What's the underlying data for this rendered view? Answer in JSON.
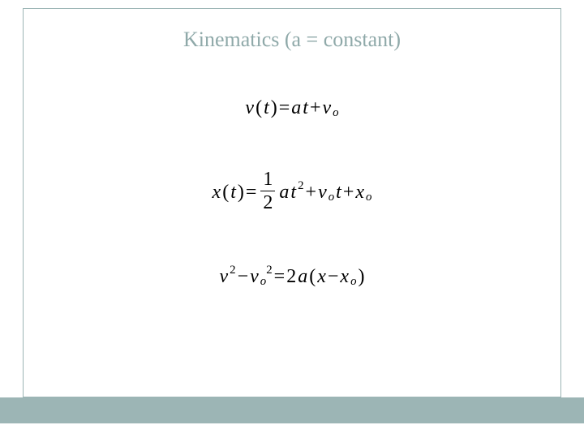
{
  "slide": {
    "title": "Kinematics (a = constant)",
    "title_color": "#8fa9a9",
    "title_fontsize": 26,
    "frame_border_color": "#9cb5b5",
    "bottom_bar_color": "#9cb5b5",
    "background_color": "#ffffff",
    "equations": {
      "fontsize": 24,
      "color": "#000000",
      "eq1": {
        "lhs_v": "v",
        "lhs_paren_open": "(",
        "lhs_t": "t",
        "lhs_paren_close": ")",
        "eq": " = ",
        "a": "a",
        "t": "t",
        "plus": " + ",
        "v2": "v",
        "sub_o": "o"
      },
      "eq2": {
        "lhs_x": "x",
        "lhs_paren_open": "(",
        "lhs_t": "t",
        "lhs_paren_close": ")",
        "eq": " = ",
        "frac_num": "1",
        "frac_den": "2",
        "a": "a",
        "t": "t",
        "sup2": "2",
        "plus1": " + ",
        "v": "v",
        "sub_o1": "o",
        "t2": "t",
        "plus2": " + ",
        "x2": "x",
        "sub_o2": "o"
      },
      "eq3": {
        "v1": "v",
        "sup2a": "2",
        "minus": " − ",
        "v2": "v",
        "sub_o": "o",
        "sup2b": "2",
        "eq": " = ",
        "two": "2",
        "a": "a",
        "paren_open": "(",
        "x": "x",
        "minus2": " − ",
        "x2": "x",
        "sub_o2": "o",
        "paren_close": ")"
      }
    }
  }
}
